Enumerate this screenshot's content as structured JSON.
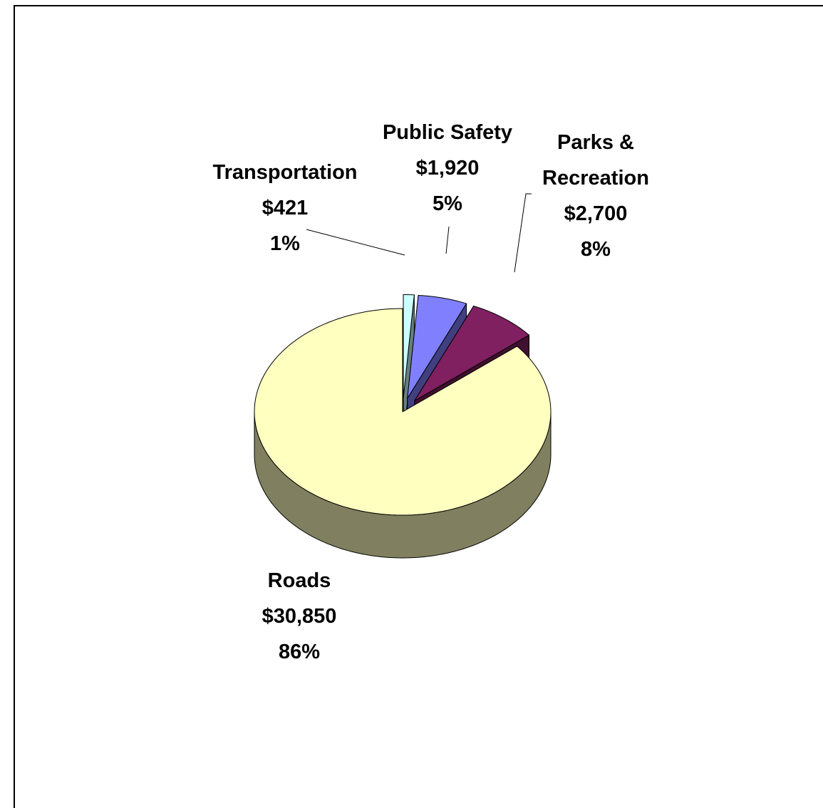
{
  "chart_data": {
    "type": "pie3d",
    "categories": [
      "Transportation",
      "Public Safety",
      "Parks & Recreation",
      "Roads"
    ],
    "values": [
      421,
      1920,
      2700,
      30850
    ],
    "value_labels": [
      "$421",
      "$1,920",
      "$2,700",
      "$30,850"
    ],
    "percentages": [
      1,
      5,
      8,
      86
    ],
    "percentage_labels": [
      "1%",
      "5%",
      "8%",
      "86%"
    ],
    "colors": [
      "#ccffff",
      "#8080ff",
      "#802060",
      "#ffffc0"
    ]
  }
}
